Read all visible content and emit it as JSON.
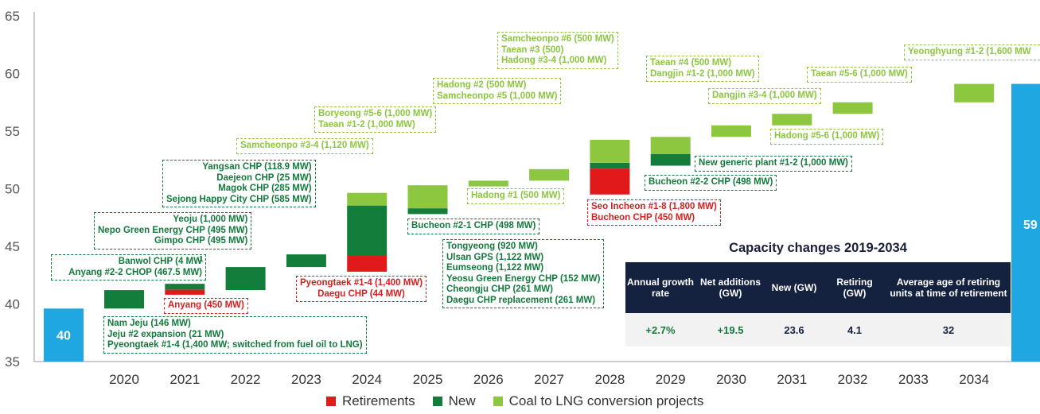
{
  "chart_data": {
    "type": "bar",
    "title": "",
    "xlabel": "",
    "ylabel": "",
    "ylim": [
      35,
      65
    ],
    "y_ticks": [
      35,
      40,
      45,
      50,
      55,
      60,
      65
    ],
    "categories": [
      "2020",
      "2021",
      "2022",
      "2023",
      "2024",
      "2025",
      "2026",
      "2027",
      "2028",
      "2029",
      "2030",
      "2031",
      "2032",
      "2033",
      "2034"
    ],
    "start": {
      "label": "40",
      "value": 39.6
    },
    "end": {
      "label": "59",
      "value": 59.1
    },
    "series": [
      {
        "name": "Retirements",
        "color": "#e2191b"
      },
      {
        "name": "New",
        "color": "#137d3c"
      },
      {
        "name": "Coal to LNG conversion projects",
        "color": "#8dc63f"
      }
    ],
    "bars": [
      {
        "year": "2020",
        "retire": 0,
        "new": 1.6,
        "conv": 0,
        "base": 39.6
      },
      {
        "year": "2021",
        "retire": 0.45,
        "new": 0.5,
        "conv": 0,
        "base": 40.8
      },
      {
        "year": "2022",
        "retire": 0,
        "new": 2.0,
        "conv": 0,
        "base": 41.2
      },
      {
        "year": "2023",
        "retire": 0,
        "new": 1.1,
        "conv": 0,
        "base": 43.2
      },
      {
        "year": "2024",
        "retire": 1.44,
        "new": 4.3,
        "conv": 1.1,
        "base": 42.8
      },
      {
        "year": "2025",
        "retire": 0,
        "new": 0.5,
        "conv": 2.0,
        "base": 47.8
      },
      {
        "year": "2026",
        "retire": 0,
        "new": 0,
        "conv": 0.5,
        "base": 50.2
      },
      {
        "year": "2027",
        "retire": 0,
        "new": 0,
        "conv": 1.0,
        "base": 50.7
      },
      {
        "year": "2028",
        "retire": 2.25,
        "new": 0.5,
        "conv": 2.0,
        "base": 49.5
      },
      {
        "year": "2029",
        "retire": 0,
        "new": 1.0,
        "conv": 1.5,
        "base": 52.0
      },
      {
        "year": "2030",
        "retire": 0,
        "new": 0,
        "conv": 1.0,
        "base": 54.5
      },
      {
        "year": "2031",
        "retire": 0,
        "new": 0,
        "conv": 1.0,
        "base": 55.5
      },
      {
        "year": "2032",
        "retire": 0,
        "new": 0,
        "conv": 1.0,
        "base": 56.5
      },
      {
        "year": "2033",
        "retire": 0,
        "new": 0,
        "conv": 0,
        "base": 57.5
      },
      {
        "year": "2034",
        "retire": 0,
        "new": 0,
        "conv": 1.6,
        "base": 57.5
      }
    ],
    "legend_placement": "bottom"
  },
  "annotations": {
    "y2020": [
      "Nam Jeju (146 MW)",
      "Jeju #2 expansion (21 MW)",
      "Pyeongtaek #1-4 (1,400 MW; switched from fuel oil to LNG)"
    ],
    "y2021_new": [
      "Banwol CHP (4 MW",
      "Anyang #2-2 CHOP (467.5 MW)"
    ],
    "y2021_new_mark": "1",
    "y2021_ret": [
      "Anyang (450 MW)"
    ],
    "y2022": [
      "Yeoju (1,000 MW)",
      "Nepo Green Energy CHP (495 MW)",
      "Gimpo CHP (495 MW)"
    ],
    "y2023": [
      "Yangsan CHP (118.9 MW)",
      "Daejeon CHP (25 MW)",
      "Magok CHP (285 MW)",
      "Sejong Happy City CHP (585 MW)"
    ],
    "y2024_conv": [
      "Samcheonpo #3-4 (1,120 MW)"
    ],
    "y2024_ret": [
      "Pyeongtaek #1-4 (1,400 MW)",
      "Daegu CHP (44 MW)"
    ],
    "y2025_conv": [
      "Boryeong #5-6 (1,000 MW)",
      "Taean #1-2 (1,000 MW)"
    ],
    "y2025_new": [
      "Bucheon #2-1 CHP (498 MW)"
    ],
    "y2026_conv": [
      "Hadong #1 (500 MW)"
    ],
    "y2026_new": [
      "Tongyeong (920 MW)",
      "Ulsan GPS (1,122 MW)",
      "Eumseong (1,122 MW)",
      "Yeosu Green Energy CHP (152 MW)",
      "Cheongju CHP (261 MW)",
      "Daegu CHP replacement (261 MW)"
    ],
    "y2027_conv": [
      "Hadong #2 (500 MW)",
      "Samcheonpo #5 (1,000 MW)"
    ],
    "y2028_conv": [
      "Samcheonpo #6 (500 MW)",
      "Taean #3 (500)",
      "Hadong #3-4 (1,000 MW)"
    ],
    "y2028_ret": [
      "Seo Incheon #1-8 (1,800 MW)",
      "Bucheon CHP (450 MW)"
    ],
    "y2029_new": [
      "Bucheon #2-2 CHP (498 MW)"
    ],
    "y2029_conv": [
      "Taean #4 (500 MW)",
      "Dangjin #1-2 (1,000 MW)"
    ],
    "y2030_new": [
      "New generic plant #1-2 (1,000 MW)"
    ],
    "y2030_conv": [
      "Dangjin #3-4 (1,000 MW)"
    ],
    "y2031_conv": [
      "Hadong #5-6 (1,000 MW)"
    ],
    "y2032_conv": [
      "Taean #5-6 (1,000 MW)"
    ],
    "y2034_conv": [
      "Yeonghyung #1-2 (1,600 MW"
    ]
  },
  "summary": {
    "title": "Capacity changes 2019-2034",
    "headers": [
      "Annual growth rate",
      "Net additions (GW)",
      "New (GW)",
      "Retiring (GW)",
      "Average age of retiring units at time of retirement"
    ],
    "values": [
      "+2.7%",
      "+19.5",
      "23.6",
      "4.1",
      "32"
    ]
  },
  "legend": {
    "retirements": "Retirements",
    "new": "New",
    "conversion": "Coal to LNG conversion projects"
  },
  "colors": {
    "retire": "#e2191b",
    "new": "#137d3c",
    "conv": "#8dc63f",
    "endpoint": "#1ea7e1",
    "table_header": "#14213f"
  }
}
